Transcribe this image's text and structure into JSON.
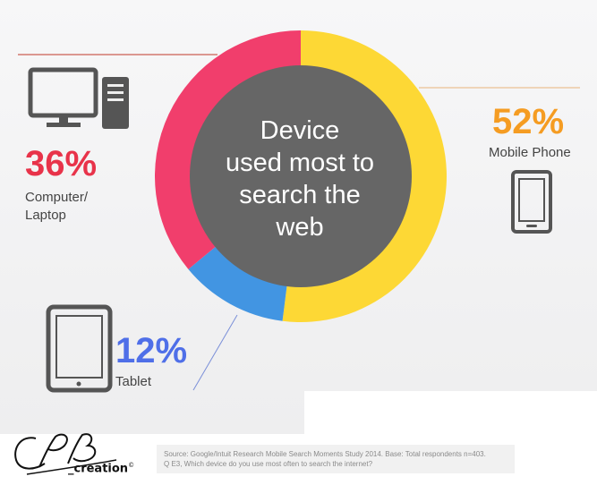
{
  "chart_data": {
    "type": "pie",
    "title": "Device used most to search the web",
    "categories": [
      "Mobile Phone",
      "Tablet",
      "Computer/ Laptop"
    ],
    "values": [
      52,
      12,
      36
    ],
    "labels": [
      "52%",
      "12%",
      "36%"
    ],
    "colors": [
      "#fdd835",
      "#4295e2",
      "#f13e6c"
    ],
    "style": "donut"
  },
  "title_lines": [
    "Device",
    "used most to",
    "search the",
    "web"
  ],
  "segments": {
    "mobile": {
      "pct": "52%",
      "label": "Mobile Phone",
      "color": "#f59c22",
      "icon": "smartphone-icon"
    },
    "computer": {
      "pct": "36%",
      "label_line1": "Computer/",
      "label_line2": "Laptop",
      "color": "#e8334a",
      "icon": "desktop-computer-icon"
    },
    "tablet": {
      "pct": "12%",
      "label": "Tablet",
      "color": "#4f6fe8",
      "icon": "tablet-icon"
    }
  },
  "source": {
    "line1": "Source: Google/Intuit Research Mobile Search Moments Study 2014. Base: Total respondents n=403.",
    "line2": "Q E3, Which device do you use most often to search the internet?"
  },
  "logo": {
    "text": "_creation",
    "mark": "©"
  }
}
